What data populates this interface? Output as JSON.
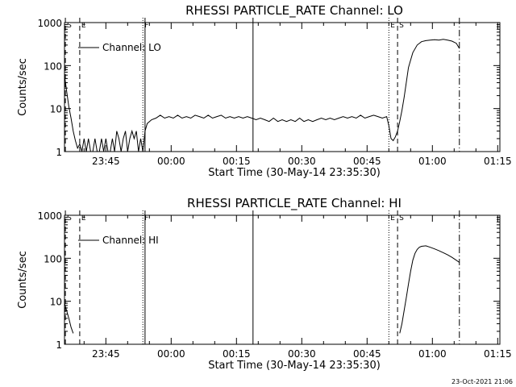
{
  "footer": {
    "timestamp": "23-Oct-2021 21:06"
  },
  "chart_data": [
    {
      "type": "line",
      "title": "RHESSI PARTICLE_RATE Channel: LO",
      "xlabel": "Start Time (30-May-14 23:35:30)",
      "ylabel": "Counts/sec",
      "y_scale": "log",
      "ylim": [
        1,
        1000
      ],
      "xlim_minutes": [
        0,
        100
      ],
      "x_ticks": [
        {
          "label": "23:45",
          "t": 9.5
        },
        {
          "label": "00:00",
          "t": 24.5
        },
        {
          "label": "00:15",
          "t": 39.5
        },
        {
          "label": "00:30",
          "t": 54.5
        },
        {
          "label": "00:45",
          "t": 69.5
        },
        {
          "label": "01:00",
          "t": 84.5
        },
        {
          "label": "01:15",
          "t": 99.5
        }
      ],
      "y_ticks": [
        {
          "label": "1",
          "v": 1
        },
        {
          "label": "10",
          "v": 10
        },
        {
          "label": "100",
          "v": 100
        },
        {
          "label": "1000",
          "v": 1000
        }
      ],
      "legend": {
        "label": "Channel: LO",
        "placement": "top-left"
      },
      "markers": [
        {
          "label": "S",
          "t": 0.2,
          "style": "dashed"
        },
        {
          "label": "E",
          "t": 3.5,
          "style": "dashed"
        },
        {
          "label": "F",
          "t": 18.0,
          "style": "dotted"
        },
        {
          "label": "",
          "t": 18.5,
          "style": "solid"
        },
        {
          "label": "",
          "t": 43.3,
          "style": "solid"
        },
        {
          "label": "E",
          "t": 74.5,
          "style": "dotted"
        },
        {
          "label": "S",
          "t": 76.5,
          "style": "dashed"
        },
        {
          "label": "",
          "t": 90.7,
          "style": "dashdot"
        }
      ],
      "series": [
        {
          "x": [
            0,
            0.5,
            1,
            1.5,
            2,
            2.5,
            3,
            3.5,
            4,
            4.5,
            5,
            5.5,
            6,
            6.5,
            7,
            7.5,
            8,
            8.5,
            9,
            9.5,
            10,
            10.5,
            11,
            11.5,
            12,
            12.5,
            13,
            13.5,
            14,
            14.5,
            15,
            15.5,
            16,
            16.5,
            17,
            17.5,
            18,
            18.5,
            19,
            20,
            21,
            22,
            23,
            24,
            25,
            26,
            27,
            28,
            29,
            30,
            31,
            32,
            33,
            34,
            35,
            36,
            37,
            38,
            39,
            40,
            41,
            42,
            43,
            44,
            45,
            46,
            47,
            48,
            49,
            50,
            51,
            52,
            53,
            54,
            55,
            56,
            57,
            58,
            59,
            60,
            61,
            62,
            63,
            64,
            65,
            66,
            67,
            68,
            69,
            70,
            71,
            72,
            73,
            74,
            74.5,
            75,
            75.5,
            76,
            76.5,
            77,
            77.5,
            78,
            78.5,
            79,
            80,
            81,
            82,
            83,
            84,
            85,
            86,
            87,
            88,
            89,
            90,
            90.7
          ],
          "y": [
            60,
            25,
            11,
            6,
            3,
            1.8,
            1.2,
            1.5,
            1,
            2,
            1,
            2,
            1,
            1,
            2,
            1,
            1,
            2,
            1,
            2,
            1,
            1,
            2,
            1,
            3,
            2,
            1,
            2,
            3,
            1,
            2,
            3,
            2,
            3,
            1,
            2,
            1,
            3,
            4.5,
            5.5,
            6,
            7,
            6,
            6.5,
            6,
            7,
            6,
            6.5,
            6,
            7,
            6.5,
            6,
            7,
            6,
            6.5,
            7,
            6,
            6.5,
            6,
            6.5,
            6,
            6.5,
            6,
            5.5,
            6,
            5.5,
            5,
            6,
            5,
            5.5,
            5,
            5.5,
            5,
            6,
            5,
            5.5,
            5,
            5.5,
            6,
            5.5,
            6,
            5.5,
            6,
            6.5,
            6,
            6.5,
            6,
            7,
            6,
            6.5,
            7,
            6.5,
            6,
            6.5,
            4,
            2,
            1.8,
            2.2,
            3,
            5,
            9,
            18,
            40,
            90,
            200,
            300,
            360,
            380,
            390,
            400,
            390,
            410,
            390,
            370,
            330,
            250
          ]
        }
      ]
    },
    {
      "type": "line",
      "title": "RHESSI PARTICLE_RATE Channel: HI",
      "xlabel": "Start Time (30-May-14 23:35:30)",
      "ylabel": "Counts/sec",
      "y_scale": "log",
      "ylim": [
        1,
        1000
      ],
      "xlim_minutes": [
        0,
        100
      ],
      "x_ticks": [
        {
          "label": "23:45",
          "t": 9.5
        },
        {
          "label": "00:00",
          "t": 24.5
        },
        {
          "label": "00:15",
          "t": 39.5
        },
        {
          "label": "00:30",
          "t": 54.5
        },
        {
          "label": "00:45",
          "t": 69.5
        },
        {
          "label": "01:00",
          "t": 84.5
        },
        {
          "label": "01:15",
          "t": 99.5
        }
      ],
      "y_ticks": [
        {
          "label": "1",
          "v": 1
        },
        {
          "label": "10",
          "v": 10
        },
        {
          "label": "100",
          "v": 100
        },
        {
          "label": "1000",
          "v": 1000
        }
      ],
      "legend": {
        "label": "Channel: HI",
        "placement": "top-left"
      },
      "markers": [
        {
          "label": "S",
          "t": 0.2,
          "style": "dashed"
        },
        {
          "label": "E",
          "t": 3.5,
          "style": "dashed"
        },
        {
          "label": "F",
          "t": 18.0,
          "style": "dotted"
        },
        {
          "label": "",
          "t": 18.5,
          "style": "solid"
        },
        {
          "label": "",
          "t": 43.3,
          "style": "solid"
        },
        {
          "label": "E",
          "t": 74.5,
          "style": "dotted"
        },
        {
          "label": "S",
          "t": 76.5,
          "style": "dashed"
        },
        {
          "label": "",
          "t": 90.7,
          "style": "dashdot"
        }
      ],
      "series": [
        {
          "x": [
            0,
            0.5,
            1,
            1.5,
            2
          ],
          "y": [
            9,
            6,
            4,
            2.5,
            1.8
          ]
        },
        {
          "x": [
            77,
            77.5,
            78,
            78.5,
            79,
            79.5,
            80,
            80.5,
            81,
            81.5,
            82,
            83,
            84,
            85,
            86,
            87,
            88,
            89,
            90,
            90.7
          ],
          "y": [
            1.8,
            3,
            6,
            12,
            25,
            50,
            90,
            130,
            160,
            180,
            190,
            195,
            180,
            165,
            150,
            135,
            120,
            105,
            90,
            80
          ]
        }
      ]
    }
  ]
}
